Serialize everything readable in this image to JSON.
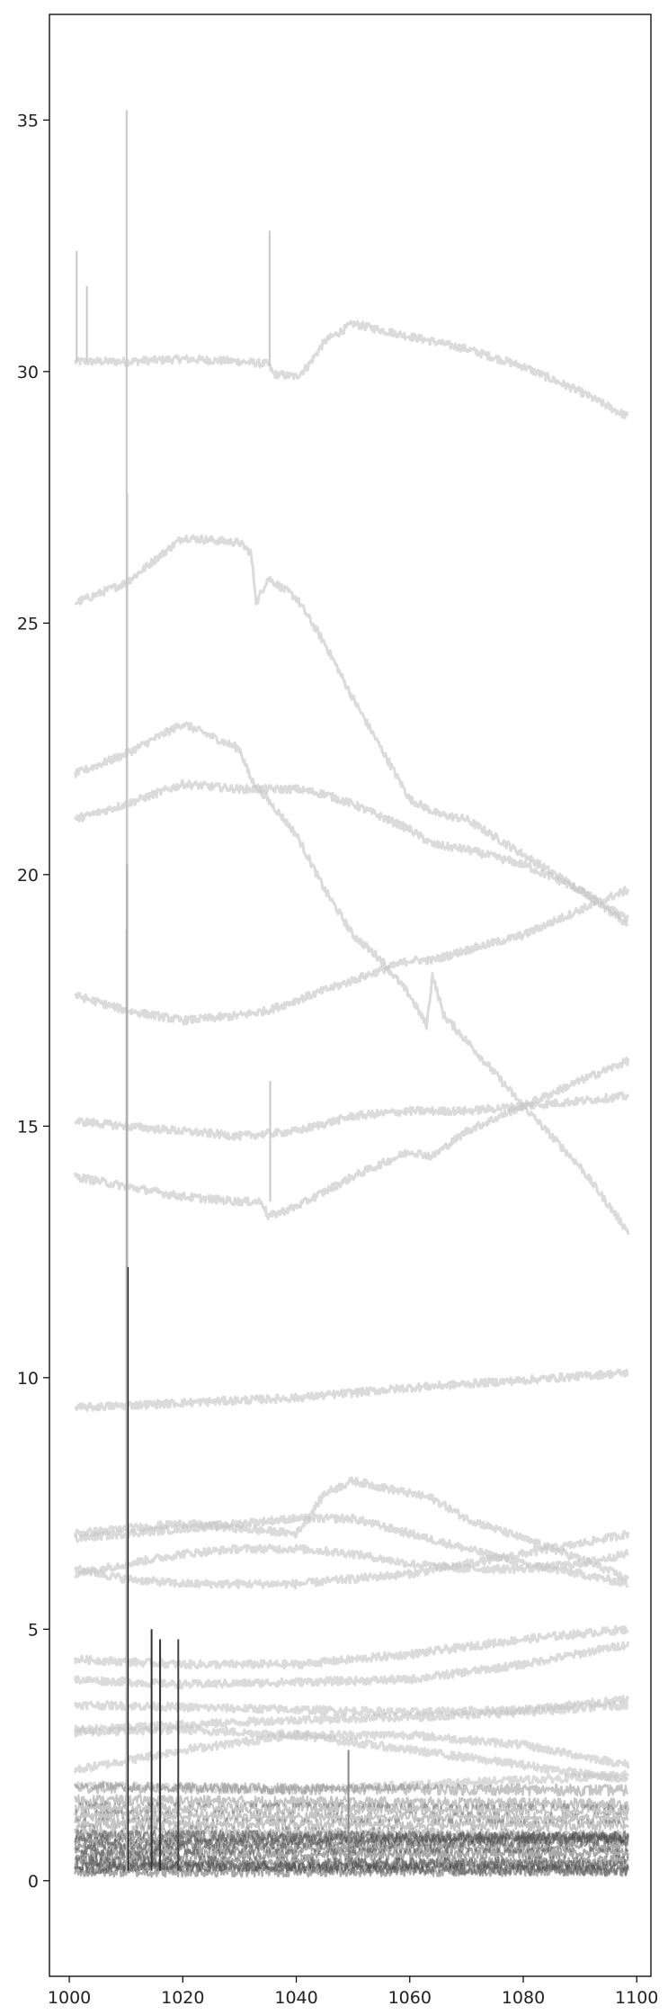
{
  "chart_data": {
    "type": "line",
    "title": "",
    "xlabel": "",
    "ylabel": "",
    "xlim": [
      996.5,
      1102.5
    ],
    "ylim": [
      -1.9,
      37.1
    ],
    "grid": false,
    "legend": "none",
    "x_ticks": [
      1000,
      1020,
      1040,
      1060,
      1080,
      1100
    ],
    "y_ticks": [
      0,
      5,
      10,
      15,
      20,
      25,
      30,
      35
    ],
    "x_tick_labels": [
      "1000",
      "1020",
      "1040",
      "1060",
      "1080",
      "1100"
    ],
    "y_tick_labels": [
      "0",
      "5",
      "10",
      "15",
      "20",
      "25",
      "30",
      "35"
    ],
    "spectrum_color": "#c8c8c8",
    "dense_color": "#404040",
    "x_start": 1001,
    "x_end": 1098.5,
    "light_spectra": [
      {
        "x": [
          1001,
          1010,
          1020,
          1030,
          1035,
          1036,
          1040,
          1042,
          1045,
          1050,
          1060,
          1070,
          1080,
          1090,
          1098.5
        ],
        "y": [
          30.2,
          30.2,
          30.25,
          30.2,
          30.15,
          29.95,
          29.9,
          30.1,
          30.6,
          30.95,
          30.7,
          30.45,
          30.1,
          29.6,
          29.1
        ]
      },
      {
        "x": [
          1001,
          1010,
          1020,
          1030,
          1032,
          1033,
          1035,
          1040,
          1045,
          1050,
          1055,
          1060,
          1065,
          1070,
          1080,
          1090,
          1098.5
        ],
        "y": [
          25.4,
          25.8,
          26.7,
          26.6,
          26.4,
          25.4,
          25.9,
          25.5,
          24.6,
          23.5,
          22.5,
          21.5,
          21.2,
          21.1,
          20.4,
          19.7,
          19.1
        ]
      },
      {
        "x": [
          1001,
          1010,
          1020,
          1030,
          1032,
          1040,
          1045,
          1050,
          1055,
          1060,
          1063,
          1064,
          1066,
          1070,
          1080,
          1090,
          1098.5
        ],
        "y": [
          22.0,
          22.4,
          23.0,
          22.5,
          21.9,
          20.8,
          19.7,
          18.8,
          18.3,
          17.6,
          17.0,
          18.0,
          17.2,
          16.7,
          15.4,
          14.2,
          12.9
        ]
      },
      {
        "x": [
          1001,
          1010,
          1020,
          1030,
          1040,
          1045,
          1050,
          1060,
          1064,
          1070,
          1080,
          1090,
          1098.5
        ],
        "y": [
          21.1,
          21.4,
          21.8,
          21.7,
          21.7,
          21.6,
          21.4,
          20.9,
          20.6,
          20.5,
          20.2,
          19.7,
          19.0
        ]
      },
      {
        "x": [
          1001,
          1010,
          1020,
          1030,
          1035,
          1040,
          1050,
          1060,
          1064,
          1070,
          1080,
          1090,
          1098.5
        ],
        "y": [
          17.6,
          17.3,
          17.1,
          17.2,
          17.3,
          17.5,
          17.9,
          18.3,
          18.3,
          18.5,
          18.8,
          19.3,
          19.7
        ]
      },
      {
        "x": [
          1001,
          1010,
          1020,
          1030,
          1040,
          1050,
          1060,
          1070,
          1080,
          1090,
          1098.5
        ],
        "y": [
          15.1,
          15.0,
          14.9,
          14.8,
          14.9,
          15.2,
          15.3,
          15.3,
          15.4,
          15.5,
          15.6
        ]
      },
      {
        "x": [
          1001,
          1010,
          1020,
          1030,
          1034,
          1035,
          1040,
          1050,
          1060,
          1064,
          1070,
          1080,
          1090,
          1098.5
        ],
        "y": [
          14.0,
          13.8,
          13.6,
          13.5,
          13.5,
          13.2,
          13.4,
          14.0,
          14.5,
          14.4,
          14.9,
          15.4,
          15.9,
          16.3
        ]
      },
      {
        "x": [
          1001,
          1020,
          1040,
          1060,
          1080,
          1098.5
        ],
        "y": [
          9.4,
          9.5,
          9.6,
          9.8,
          9.95,
          10.1
        ]
      },
      {
        "x": [
          1001,
          1010,
          1020,
          1030,
          1040,
          1042,
          1045,
          1050,
          1060,
          1064,
          1070,
          1080,
          1090,
          1098.5
        ],
        "y": [
          6.9,
          7.0,
          7.1,
          7.0,
          6.9,
          7.2,
          7.7,
          7.95,
          7.7,
          7.6,
          7.2,
          6.8,
          6.4,
          6.0
        ]
      },
      {
        "x": [
          1001,
          1010,
          1020,
          1030,
          1040,
          1050,
          1060,
          1070,
          1080,
          1090,
          1098.5
        ],
        "y": [
          6.8,
          6.9,
          7.0,
          7.1,
          7.2,
          7.2,
          6.9,
          6.6,
          6.3,
          6.1,
          5.9
        ]
      },
      {
        "x": [
          1001,
          1010,
          1020,
          1030,
          1040,
          1050,
          1060,
          1070,
          1080,
          1090,
          1098.5
        ],
        "y": [
          6.1,
          6.3,
          6.5,
          6.6,
          6.6,
          6.5,
          6.3,
          6.2,
          6.2,
          6.3,
          6.5
        ]
      },
      {
        "x": [
          1001,
          1010,
          1020,
          1030,
          1040,
          1050,
          1060,
          1070,
          1080,
          1090,
          1098.5
        ],
        "y": [
          6.2,
          6.0,
          5.9,
          5.9,
          5.9,
          6.0,
          6.1,
          6.3,
          6.5,
          6.7,
          6.9
        ]
      },
      {
        "x": [
          1001,
          1020,
          1040,
          1060,
          1080,
          1098.5
        ],
        "y": [
          4.4,
          4.3,
          4.3,
          4.5,
          4.8,
          5.0
        ]
      },
      {
        "x": [
          1001,
          1020,
          1040,
          1060,
          1080,
          1098.5
        ],
        "y": [
          4.0,
          3.9,
          3.95,
          4.0,
          4.3,
          4.7
        ]
      },
      {
        "x": [
          1001,
          1020,
          1040,
          1060,
          1080,
          1098.5
        ],
        "y": [
          3.5,
          3.45,
          3.4,
          3.35,
          3.4,
          3.6
        ]
      },
      {
        "x": [
          1001,
          1020,
          1040,
          1060,
          1080,
          1098.5
        ],
        "y": [
          3.0,
          3.1,
          3.2,
          3.25,
          3.35,
          3.5
        ]
      },
      {
        "x": [
          1001,
          1020,
          1040,
          1060,
          1080,
          1098.5
        ],
        "y": [
          2.95,
          3.0,
          2.9,
          2.6,
          2.3,
          2.0
        ]
      },
      {
        "x": [
          1001,
          1020,
          1040,
          1060,
          1080,
          1098.5
        ],
        "y": [
          2.2,
          2.6,
          2.9,
          2.9,
          2.7,
          2.3
        ]
      },
      {
        "x": [
          1001,
          1020,
          1040,
          1060,
          1080,
          1098.5
        ],
        "y": [
          1.9,
          1.85,
          1.8,
          1.9,
          2.0,
          2.1
        ]
      }
    ],
    "dense_spectra_levels": [
      1.85,
      1.6,
      1.45,
      1.3,
      1.15,
      1.0,
      0.9,
      0.8,
      0.7,
      0.6,
      0.5,
      0.4,
      0.32,
      0.25,
      0.18
    ],
    "spikes": [
      {
        "x": 1010.1,
        "top": 35.2,
        "base": 0.2,
        "color": "#c8c8c8"
      },
      {
        "x": 1010.2,
        "top": 27.6,
        "base": 0.2,
        "color": "#c8c8c8"
      },
      {
        "x": 1010.2,
        "top": 20.2,
        "base": 0.2,
        "color": "#b0b0b0"
      },
      {
        "x": 1010.3,
        "top": 12.2,
        "base": 0.2,
        "color": "#111111"
      },
      {
        "x": 1010.1,
        "top": 18.9,
        "base": 0.2,
        "color": "#b0b0b0"
      },
      {
        "x": 1014.5,
        "top": 5.0,
        "base": 0.2,
        "color": "#333333"
      },
      {
        "x": 1016.0,
        "top": 4.8,
        "base": 0.2,
        "color": "#333333"
      },
      {
        "x": 1019.2,
        "top": 4.8,
        "base": 0.2,
        "color": "#444444"
      },
      {
        "x": 1035.3,
        "top": 32.8,
        "base": 30.1,
        "color": "#c8c8c8"
      },
      {
        "x": 1035.4,
        "top": 15.9,
        "base": 13.5,
        "color": "#c8c8c8"
      },
      {
        "x": 1001.3,
        "top": 32.4,
        "base": 30.2,
        "color": "#c8c8c8"
      },
      {
        "x": 1003.1,
        "top": 31.7,
        "base": 30.2,
        "color": "#c8c8c8"
      },
      {
        "x": 1049.2,
        "top": 2.6,
        "base": 0.3,
        "color": "#888888"
      }
    ]
  }
}
